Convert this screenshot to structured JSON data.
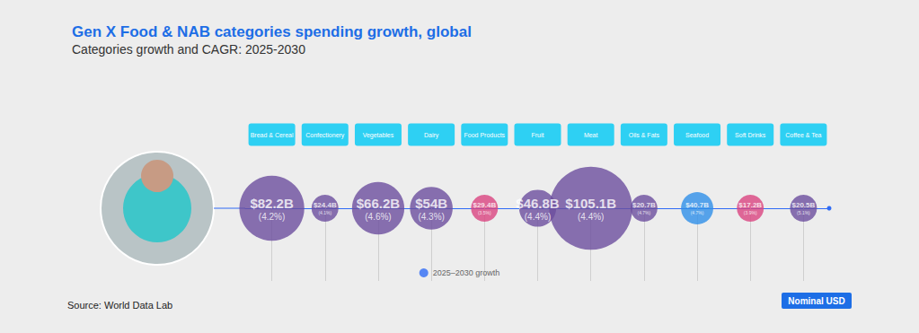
{
  "chart_data": {
    "type": "bubble",
    "title": "Gen X Food & NAB categories spending growth, global",
    "subtitle": "Categories growth and CAGR: 2025-2030",
    "source": "Source: World Data Lab",
    "badge": "Nominal USD",
    "categories": [
      "Bread & Cereal",
      "Confectionery",
      "Vegetables",
      "Dairy",
      "Food Products",
      "Fruit",
      "Meat",
      "Oils & Fats",
      "Seafood",
      "Soft Drinks",
      "Coffee & Tea"
    ],
    "series": [
      {
        "name": "2025–2030 growth",
        "color": "#2f6bf5",
        "values": [
          82.2,
          24.4,
          66.2,
          54,
          29.4,
          46.8,
          105.1,
          20.7,
          40.7,
          17.2,
          20.5
        ],
        "value_labels": [
          "$82.2B",
          "$24.4B",
          "$66.2B",
          "$54B",
          "$29.4B",
          "$46.8B",
          "$105.1B",
          "$20.7B",
          "$40.7B",
          "$17.2B",
          "$20.5B"
        ],
        "cagr": [
          4.2,
          4.1,
          4.6,
          4.3,
          3.5,
          4.4,
          4.4,
          4.7,
          4.7,
          3.9,
          5.1
        ],
        "cagr_labels": [
          "(4.2%)",
          "(4.1%)",
          "(4.6%)",
          "(4.3%)",
          "(3.5%)",
          "(4.4%)",
          "(4.4%)",
          "(4.7%)",
          "(4.7%)",
          "(3.9%)",
          "(5.1%)"
        ],
        "colors": [
          "#6b4d9e",
          "#6b4d9e",
          "#6b4d9e",
          "#6b4d9e",
          "#d9437f",
          "#6b4d9e",
          "#6b4d9e",
          "#6b4d9e",
          "#2e8fe8",
          "#d9437f",
          "#6b4d9e"
        ]
      }
    ],
    "data_labels": true,
    "legend": "bottom",
    "tick_labels": "x",
    "grid": false
  }
}
